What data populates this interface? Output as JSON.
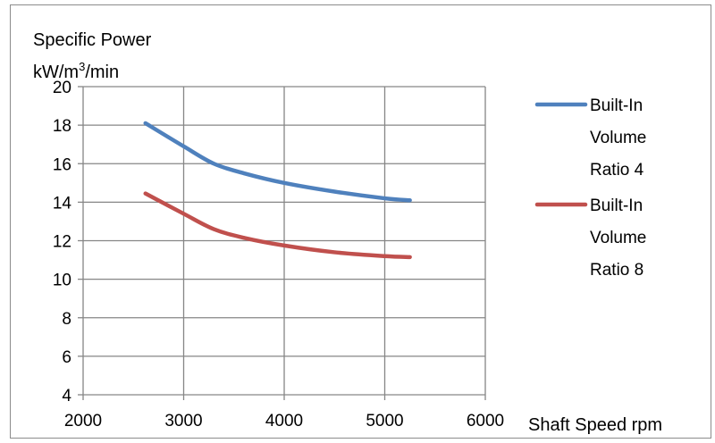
{
  "chart_data": {
    "type": "line",
    "ylabel_line1": "Specific Power",
    "ylabel_line2_base": "kW/m",
    "ylabel_line2_sup": "3",
    "ylabel_line2_tail": "/min",
    "xlabel": "Shaft Speed rpm",
    "xlim": [
      2000,
      6000
    ],
    "ylim": [
      4,
      20
    ],
    "x_ticks": [
      "2000",
      "3000",
      "4000",
      "5000",
      "6000"
    ],
    "y_ticks": [
      "4",
      "6",
      "8",
      "10",
      "12",
      "14",
      "16",
      "18",
      "20"
    ],
    "grid": true,
    "legend_position": "right",
    "series": [
      {
        "name_lines": [
          "Built-In",
          "Volume",
          "Ratio  4"
        ],
        "color": "#4f81bd",
        "x": [
          2620,
          3000,
          3300,
          3600,
          4000,
          4500,
          5000,
          5250
        ],
        "y": [
          18.1,
          16.9,
          16.0,
          15.5,
          15.0,
          14.55,
          14.2,
          14.1
        ]
      },
      {
        "name_lines": [
          "Built-In",
          "Volume",
          "Ratio  8"
        ],
        "color": "#c0504d",
        "x": [
          2620,
          3000,
          3300,
          3600,
          4000,
          4500,
          5000,
          5250
        ],
        "y": [
          14.45,
          13.4,
          12.6,
          12.15,
          11.75,
          11.4,
          11.2,
          11.15
        ]
      }
    ]
  }
}
